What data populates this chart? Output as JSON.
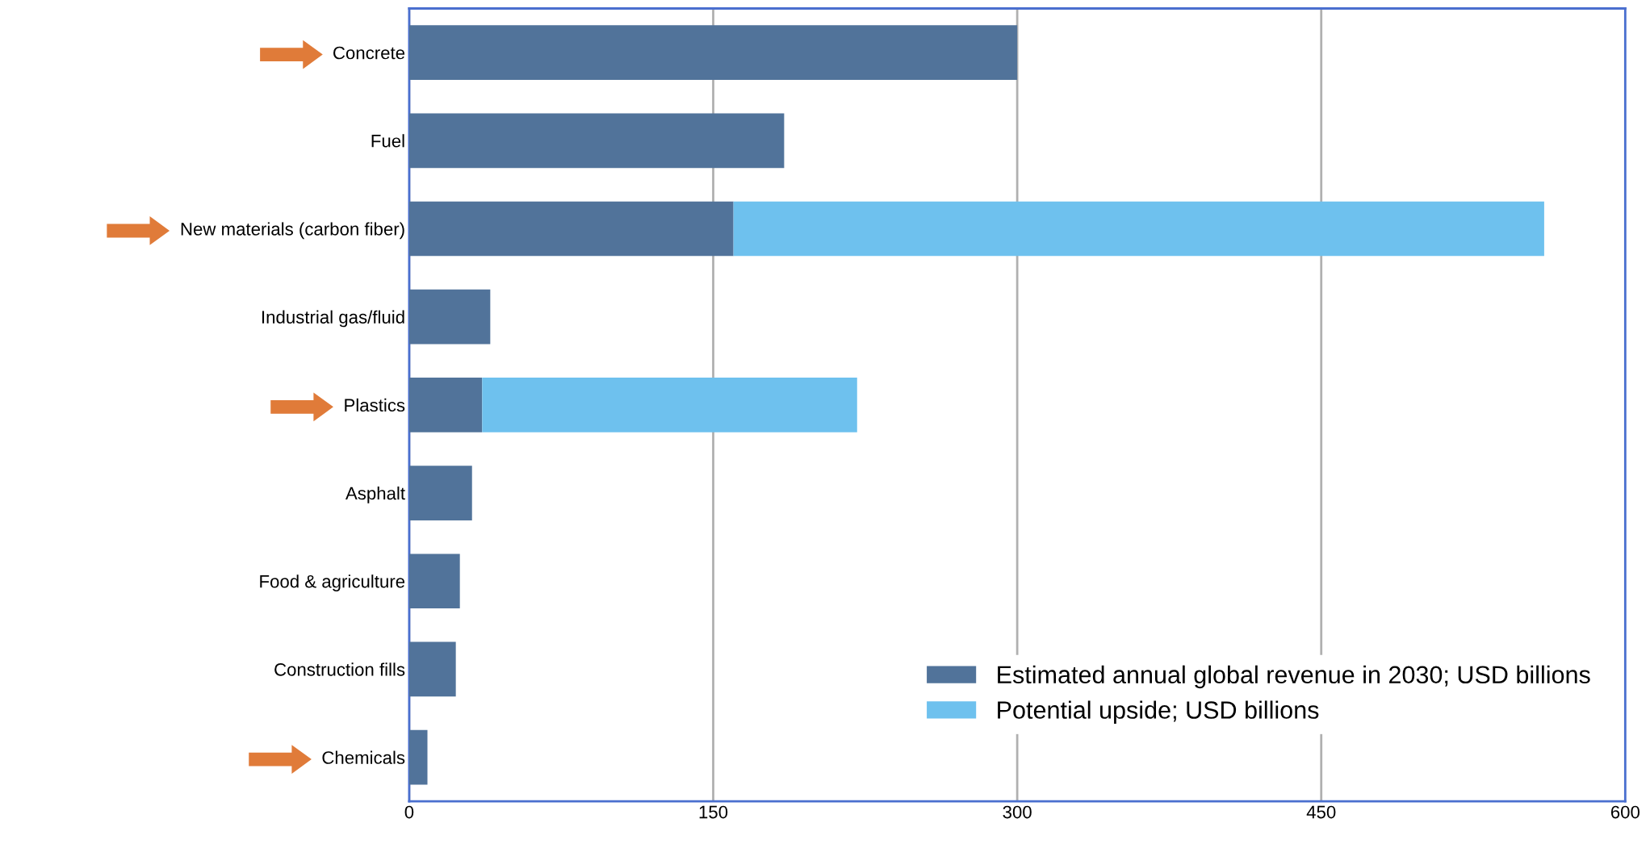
{
  "chart_data": {
    "type": "bar",
    "orientation": "horizontal",
    "stacked": true,
    "categories": [
      "Concrete",
      "Fuel",
      "New materials (carbon fiber)",
      "Industrial gas/fluid",
      "Plastics",
      "Asphalt",
      "Food & agriculture",
      "Construction fills",
      "Chemicals"
    ],
    "series": [
      {
        "name": "Estimated annual global revenue in 2030; USD billions",
        "color": "#51739a",
        "values": [
          300,
          185,
          160,
          40,
          36,
          31,
          25,
          23,
          9
        ]
      },
      {
        "name": "Potential upside; USD billions",
        "color": "#6ec1ee",
        "values": [
          null,
          null,
          400,
          null,
          185,
          null,
          null,
          null,
          null
        ]
      }
    ],
    "xlim": [
      0,
      600
    ],
    "xticks": [
      0,
      150,
      300,
      450,
      600
    ],
    "grid": "x",
    "legend": "bottom right"
  }
}
